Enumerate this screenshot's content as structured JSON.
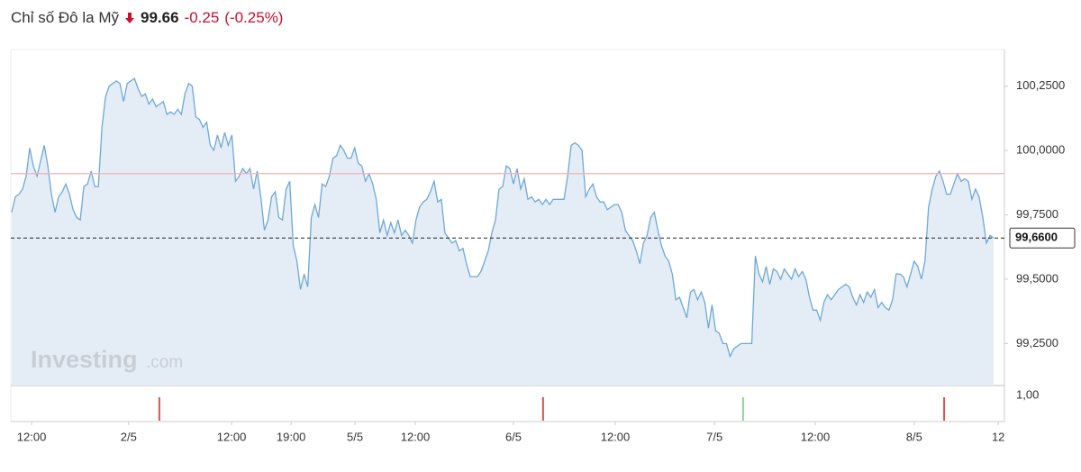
{
  "header": {
    "title": "Chỉ số Đô la Mỹ",
    "price": 99.66,
    "change": -0.25,
    "change_pct": "(-0.25%)"
  },
  "chart_data": {
    "type": "area",
    "series": [
      {
        "name": "Chỉ số Đô la Mỹ",
        "color": "#6fa8d6",
        "fill": "#e4edf6",
        "values": [
          99.76,
          99.82,
          99.83,
          99.85,
          99.9,
          100.01,
          99.94,
          99.9,
          99.96,
          100.02,
          99.94,
          99.83,
          99.76,
          99.82,
          99.84,
          99.87,
          99.83,
          99.77,
          99.74,
          99.73,
          99.86,
          99.87,
          99.92,
          99.86,
          99.86,
          100.09,
          100.21,
          100.25,
          100.26,
          100.27,
          100.26,
          100.19,
          100.26,
          100.27,
          100.28,
          100.24,
          100.21,
          100.22,
          100.18,
          100.2,
          100.17,
          100.18,
          100.19,
          100.14,
          100.15,
          100.14,
          100.16,
          100.14,
          100.22,
          100.26,
          100.25,
          100.13,
          100.12,
          100.09,
          100.11,
          100.02,
          100.0,
          100.06,
          100.01,
          100.07,
          100.02,
          100.06,
          99.88,
          99.9,
          99.93,
          99.91,
          99.93,
          99.85,
          99.92,
          99.82,
          99.69,
          99.73,
          99.82,
          99.84,
          99.74,
          99.73,
          99.85,
          99.88,
          99.63,
          99.57,
          99.46,
          99.52,
          99.47,
          99.74,
          99.79,
          99.74,
          99.87,
          99.86,
          99.9,
          99.97,
          99.98,
          100.02,
          100.0,
          99.97,
          99.97,
          100.01,
          99.95,
          99.94,
          99.88,
          99.91,
          99.87,
          99.81,
          99.68,
          99.73,
          99.67,
          99.72,
          99.68,
          99.73,
          99.67,
          99.69,
          99.67,
          99.64,
          99.73,
          99.78,
          99.8,
          99.81,
          99.84,
          99.88,
          99.8,
          99.81,
          99.68,
          99.66,
          99.64,
          99.65,
          99.61,
          99.62,
          99.56,
          99.51,
          99.51,
          99.51,
          99.53,
          99.57,
          99.61,
          99.68,
          99.73,
          99.85,
          99.86,
          99.94,
          99.93,
          99.87,
          99.93,
          99.85,
          99.89,
          99.81,
          99.82,
          99.8,
          99.81,
          99.79,
          99.81,
          99.79,
          99.81,
          99.81,
          99.81,
          99.81,
          99.9,
          100.02,
          100.03,
          100.02,
          100.0,
          99.82,
          99.85,
          99.87,
          99.82,
          99.8,
          99.8,
          99.77,
          99.78,
          99.79,
          99.79,
          99.76,
          99.69,
          99.67,
          99.65,
          99.61,
          99.56,
          99.64,
          99.67,
          99.74,
          99.76,
          99.69,
          99.63,
          99.59,
          99.57,
          99.52,
          99.42,
          99.43,
          99.39,
          99.35,
          99.45,
          99.46,
          99.42,
          99.45,
          99.41,
          99.31,
          99.4,
          99.3,
          99.29,
          99.25,
          99.25,
          99.2,
          99.23,
          99.24,
          99.25,
          99.25,
          99.25,
          99.25,
          99.59,
          99.52,
          99.49,
          99.55,
          99.48,
          99.54,
          99.53,
          99.5,
          99.54,
          99.52,
          99.5,
          99.54,
          99.51,
          99.53,
          99.5,
          99.43,
          99.38,
          99.38,
          99.34,
          99.41,
          99.44,
          99.42,
          99.44,
          99.46,
          99.47,
          99.48,
          99.47,
          99.43,
          99.4,
          99.44,
          99.41,
          99.45,
          99.43,
          99.46,
          99.39,
          99.41,
          99.39,
          99.38,
          99.42,
          99.52,
          99.52,
          99.51,
          99.47,
          99.52,
          99.57,
          99.55,
          99.5,
          99.57,
          99.78,
          99.85,
          99.9,
          99.92,
          99.88,
          99.83,
          99.83,
          99.87,
          99.91,
          99.88,
          99.89,
          99.88,
          99.81,
          99.85,
          99.82,
          99.74,
          99.64,
          99.67,
          99.66
        ]
      }
    ],
    "xlim": [
      0,
      275
    ],
    "xticks": [
      {
        "value": 5.5,
        "label": "12:00"
      },
      {
        "value": 32.4,
        "label": "2/5"
      },
      {
        "value": 60.9,
        "label": "12:00"
      },
      {
        "value": 77.4,
        "label": "19:00"
      },
      {
        "value": 95.1,
        "label": "5/5"
      },
      {
        "value": 111.8,
        "label": "12:00"
      },
      {
        "value": 139,
        "label": "6/5"
      },
      {
        "value": 167.2,
        "label": "12:00"
      },
      {
        "value": 194.7,
        "label": "7/5"
      },
      {
        "value": 222.6,
        "label": "12:00"
      },
      {
        "value": 250,
        "label": "8/5"
      },
      {
        "value": 273.3,
        "label": "12"
      }
    ],
    "ylim": [
      99.087,
      100.392
    ],
    "yticks": [
      {
        "value": 99.25,
        "label": "99,2500"
      },
      {
        "value": 99.5,
        "label": "99,5000"
      },
      {
        "value": 99.75,
        "label": "99,7500"
      },
      {
        "value": 100,
        "label": "100,0000"
      },
      {
        "value": 100.25,
        "label": "100,2500"
      }
    ],
    "last_price": {
      "value": 99.66,
      "label": "99,6600"
    },
    "previous_close": {
      "value": 99.91,
      "color": "#f2b3b3"
    },
    "event_markers": {
      "x": [
        40.9,
        147.2,
        202.6,
        258.3
      ],
      "colors": [
        "#d9534f",
        "#d9534f",
        "#8fd19e",
        "#d9534f"
      ]
    },
    "lower_panel": {
      "yticks": [
        {
          "value": 1,
          "label": "1,00"
        }
      ]
    },
    "watermark": {
      "brand": "Investing",
      "suffix": ".com"
    }
  }
}
